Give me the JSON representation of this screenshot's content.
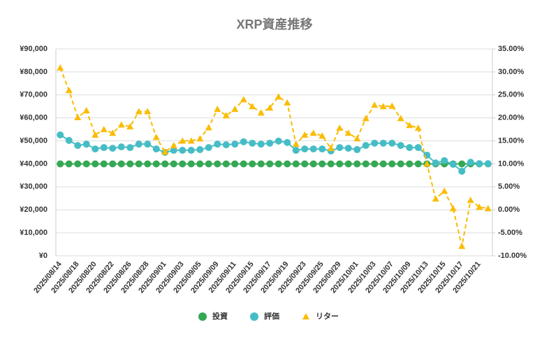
{
  "chart_data": {
    "type": "line",
    "title": "XRP資産推移",
    "categories": [
      "2025/08/14",
      null,
      "2025/08/18",
      null,
      "2025/08/20",
      null,
      "2025/08/22",
      null,
      "2025/08/26",
      null,
      "2025/08/28",
      null,
      "2025/09/01",
      null,
      "2025/09/03",
      null,
      "2025/09/05",
      null,
      "2025/09/09",
      null,
      "2025/09/11",
      null,
      "2025/09/15",
      null,
      "2025/09/17",
      null,
      "2025/09/19",
      null,
      "2025/09/23",
      null,
      "2025/09/25",
      null,
      "2025/09/29",
      null,
      "2025/10/01",
      null,
      "2025/10/03",
      null,
      "2025/10/07",
      null,
      "2025/10/09",
      null,
      "2025/10/13",
      null,
      "2025/10/15",
      null,
      "2025/10/17",
      null,
      "2025/10/21",
      null
    ],
    "series": [
      {
        "name": "投資",
        "color": "#34a853",
        "marker": "circle",
        "line_style": "solid",
        "values": [
          40000,
          40000,
          40000,
          40000,
          40000,
          40000,
          40000,
          40000,
          40000,
          40000,
          40000,
          40000,
          40000,
          40000,
          40000,
          40000,
          40000,
          40000,
          40000,
          40000,
          40000,
          40000,
          40000,
          40000,
          40000,
          40000,
          40000,
          40000,
          40000,
          40000,
          40000,
          40000,
          40000,
          40000,
          40000,
          40000,
          40000,
          40000,
          40000,
          40000,
          40000,
          40000,
          40000,
          40000,
          40000,
          40000,
          40000,
          40000,
          40000,
          40000
        ]
      },
      {
        "name": "評価",
        "color": "#46bdc6",
        "marker": "circle",
        "line_style": "solid",
        "values": [
          52600,
          50200,
          48000,
          48600,
          46500,
          47100,
          46800,
          47400,
          47100,
          48600,
          48600,
          46500,
          45000,
          45900,
          45900,
          45900,
          46200,
          47100,
          48600,
          48300,
          48600,
          49600,
          49000,
          48600,
          49000,
          49900,
          49300,
          45900,
          46500,
          46500,
          46500,
          45600,
          47100,
          46800,
          46200,
          48000,
          49000,
          49000,
          49000,
          48000,
          47100,
          47100,
          43800,
          40400,
          41400,
          39800,
          36800,
          40700,
          40100,
          40100
        ]
      },
      {
        "name": "リター",
        "color": "#fbbc04",
        "marker": "triangle",
        "line_style": "dashed",
        "axis": "y2",
        "values": [
          30.9,
          26.0,
          20.1,
          21.6,
          16.3,
          17.5,
          16.7,
          18.5,
          18.1,
          21.4,
          21.4,
          15.8,
          12.6,
          14.0,
          15.0,
          15.0,
          15.5,
          17.9,
          21.9,
          20.5,
          21.9,
          24.0,
          22.5,
          21.1,
          22.2,
          24.6,
          23.3,
          14.3,
          16.3,
          16.7,
          16.1,
          13.4,
          17.8,
          16.7,
          15.5,
          19.9,
          22.8,
          22.5,
          22.6,
          19.9,
          18.4,
          17.8,
          10.0,
          2.4,
          4.1,
          0.3,
          -7.9,
          2.1,
          0.6,
          0.3
        ]
      }
    ],
    "ylim": [
      0,
      90000
    ],
    "yticks": [
      {
        "value": 0,
        "label": "¥0"
      },
      {
        "value": 10000,
        "label": "¥10,000"
      },
      {
        "value": 20000,
        "label": "¥20,000"
      },
      {
        "value": 30000,
        "label": "¥30,000"
      },
      {
        "value": 40000,
        "label": "¥40,000"
      },
      {
        "value": 50000,
        "label": "¥50,000"
      },
      {
        "value": 60000,
        "label": "¥60,000"
      },
      {
        "value": 70000,
        "label": "¥70,000"
      },
      {
        "value": 80000,
        "label": "¥80,000"
      },
      {
        "value": 90000,
        "label": "¥90,000"
      }
    ],
    "y2lim": [
      -10,
      35
    ],
    "y2ticks": [
      {
        "value": -10,
        "label": "-10.00%"
      },
      {
        "value": -5,
        "label": "-5.00%"
      },
      {
        "value": 0,
        "label": "0.00%"
      },
      {
        "value": 5,
        "label": "5.00%"
      },
      {
        "value": 10,
        "label": "10.00%"
      },
      {
        "value": 15,
        "label": "15.00%"
      },
      {
        "value": 20,
        "label": "20.00%"
      },
      {
        "value": 25,
        "label": "25.00%"
      },
      {
        "value": 30,
        "label": "30.00%"
      },
      {
        "value": 35,
        "label": "35.00%"
      }
    ],
    "grid": true,
    "legend": "bottom"
  }
}
